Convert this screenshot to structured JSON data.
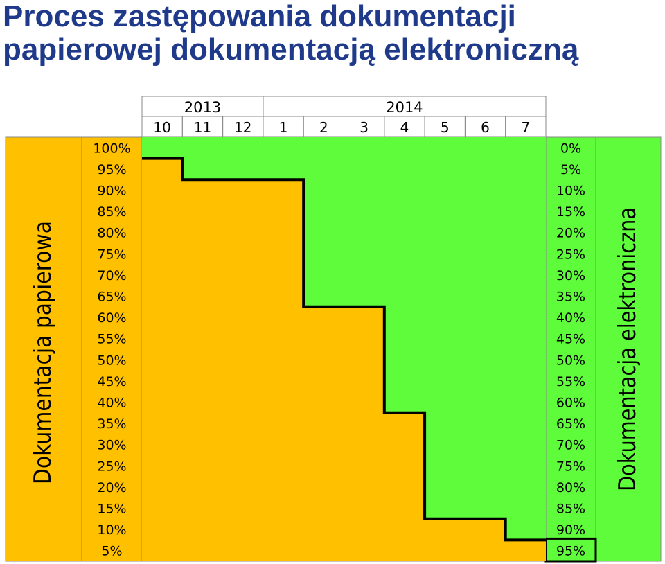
{
  "title": {
    "line1": "Proces zastępowania dokumentacji",
    "line2": "papierowej dokumentacją elektroniczną"
  },
  "colors": {
    "title": "#1f3a8a",
    "paper": "#ffc000",
    "electronic": "#5efc3a",
    "line": "#000000"
  },
  "chart_data": {
    "type": "area",
    "title": "Proces zastępowania dokumentacji papierowej dokumentacją elektroniczną",
    "years": [
      {
        "label": "2013",
        "span": 3
      },
      {
        "label": "2014",
        "span": 7
      }
    ],
    "categories": [
      "10",
      "11",
      "12",
      "1",
      "2",
      "3",
      "4",
      "5",
      "6",
      "7"
    ],
    "series": [
      {
        "name": "Dokumentacja papierowa",
        "values": [
          95,
          90,
          90,
          90,
          60,
          60,
          35,
          10,
          10,
          5
        ]
      },
      {
        "name": "Dokumentacja elektroniczna",
        "values": [
          5,
          10,
          10,
          10,
          40,
          40,
          65,
          90,
          90,
          95
        ]
      }
    ],
    "left_axis": {
      "label": "Dokumentacja papierowa",
      "ticks": [
        "100%",
        "95%",
        "90%",
        "85%",
        "80%",
        "75%",
        "70%",
        "65%",
        "60%",
        "55%",
        "50%",
        "45%",
        "40%",
        "35%",
        "30%",
        "25%",
        "20%",
        "15%",
        "10%",
        "5%"
      ]
    },
    "right_axis": {
      "label": "Dokumentacja elektroniczna",
      "ticks": [
        "0%",
        "5%",
        "10%",
        "15%",
        "20%",
        "25%",
        "30%",
        "35%",
        "40%",
        "45%",
        "50%",
        "55%",
        "60%",
        "65%",
        "70%",
        "75%",
        "80%",
        "85%",
        "90%",
        "95%"
      ]
    },
    "ylim": [
      0,
      100
    ],
    "grid": false
  }
}
